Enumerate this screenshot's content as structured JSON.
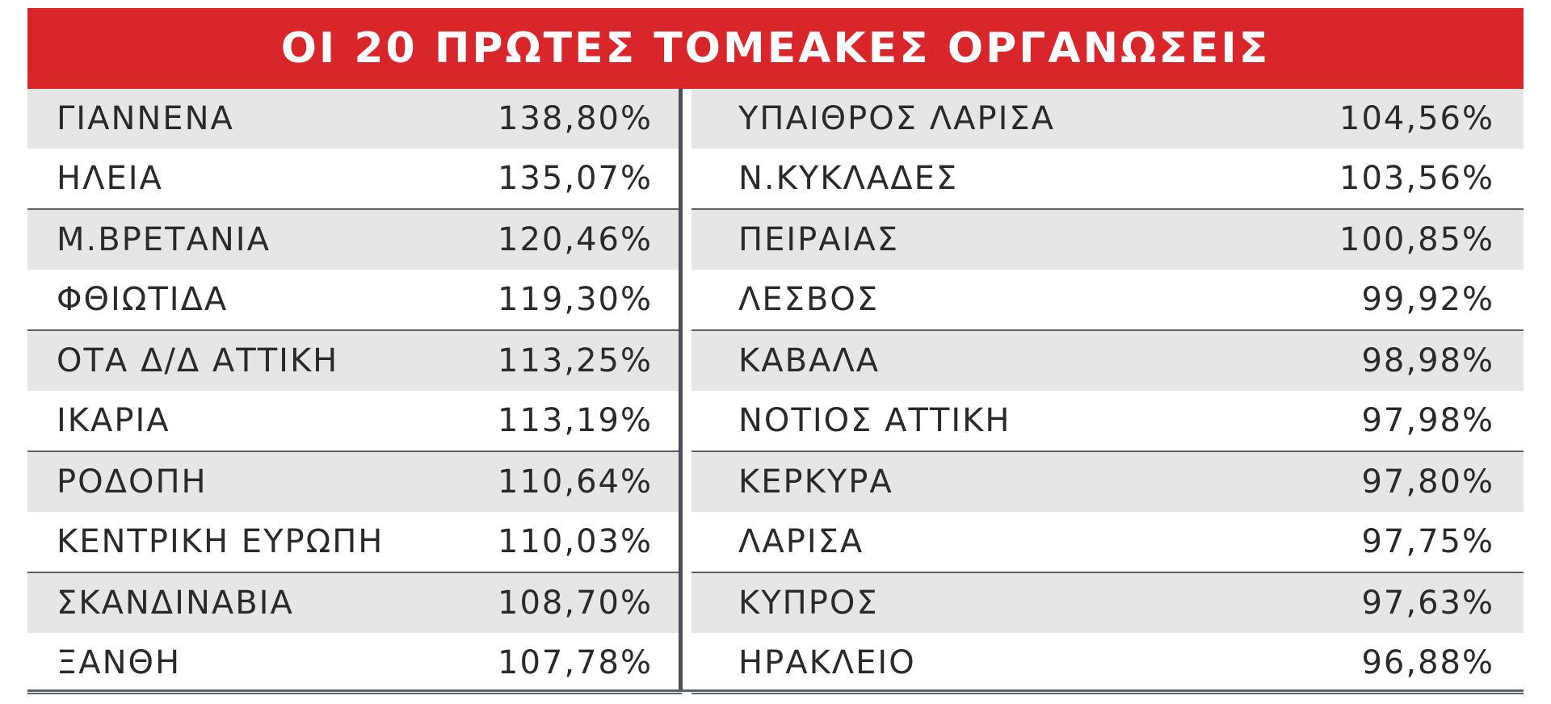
{
  "title": "ΟΙ 20 ΠΡΩΤΕΣ ΤΟΜΕΑΚΕΣ ΟΡΓΑΝΩΣΕΙΣ",
  "left": [
    {
      "name": "ΓΙΑΝΝΕΝΑ",
      "value": "138,80%"
    },
    {
      "name": "ΗΛΕΙΑ",
      "value": "135,07%"
    },
    {
      "name": "Μ.ΒΡΕΤΑΝΙΑ",
      "value": "120,46%"
    },
    {
      "name": "ΦΘΙΩΤΙΔΑ",
      "value": "119,30%"
    },
    {
      "name": "ΟΤΑ Δ/Δ ΑΤΤΙΚΗ",
      "value": "113,25%"
    },
    {
      "name": "ΙΚΑΡΙΑ",
      "value": "113,19%"
    },
    {
      "name": "ΡΟΔΟΠΗ",
      "value": "110,64%"
    },
    {
      "name": "ΚΕΝΤΡΙΚΗ ΕΥΡΩΠΗ",
      "value": "110,03%"
    },
    {
      "name": "ΣΚΑΝΔΙΝΑΒΙΑ",
      "value": "108,70%"
    },
    {
      "name": "ΞΑΝΘΗ",
      "value": "107,78%"
    }
  ],
  "right": [
    {
      "name": "ΥΠΑΙΘΡΟΣ ΛΑΡΙΣΑ",
      "value": "104,56%"
    },
    {
      "name": "Ν.ΚΥΚΛΑΔΕΣ",
      "value": "103,56%"
    },
    {
      "name": "ΠΕΙΡΑΙΑΣ",
      "value": "100,85%"
    },
    {
      "name": "ΛΕΣΒΟΣ",
      "value": "99,92%"
    },
    {
      "name": "ΚΑΒΑΛΑ",
      "value": "98,98%"
    },
    {
      "name": "ΝΟΤΙΟΣ  ΑΤΤΙΚΗ",
      "value": "97,98%"
    },
    {
      "name": "ΚΕΡΚΥΡΑ",
      "value": "97,80%"
    },
    {
      "name": "ΛΑΡΙΣΑ",
      "value": "97,75%"
    },
    {
      "name": "ΚΥΠΡΟΣ",
      "value": "97,63%"
    },
    {
      "name": "ΗΡΑΚΛΕΙΟ",
      "value": "96,88%"
    }
  ]
}
